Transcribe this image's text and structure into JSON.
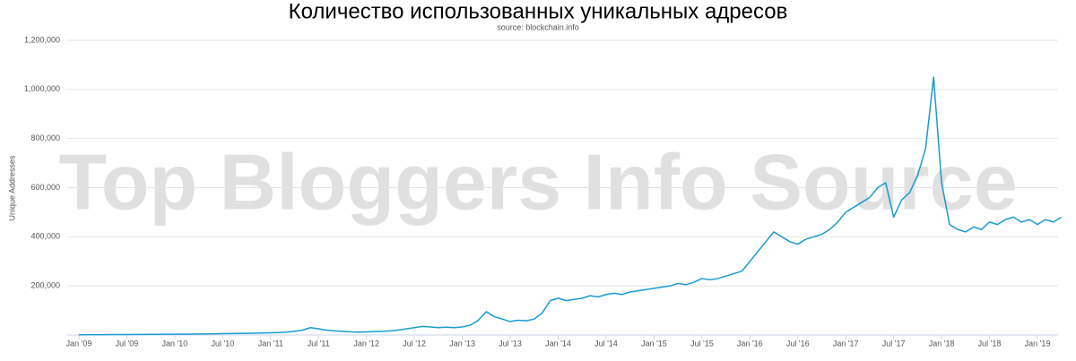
{
  "chart_data": {
    "type": "line",
    "title": "Количество использованных уникальных адресов",
    "subtitle": "source: blockchain.info",
    "y_label": "Unique Addresses",
    "watermark": "Top Bloggers Info Source",
    "x": [
      "2009-01",
      "2009-02",
      "2009-03",
      "2009-04",
      "2009-05",
      "2009-06",
      "2009-07",
      "2009-08",
      "2009-09",
      "2009-10",
      "2009-11",
      "2009-12",
      "2010-01",
      "2010-02",
      "2010-03",
      "2010-04",
      "2010-05",
      "2010-06",
      "2010-07",
      "2010-08",
      "2010-09",
      "2010-10",
      "2010-11",
      "2010-12",
      "2011-01",
      "2011-02",
      "2011-03",
      "2011-04",
      "2011-05",
      "2011-06",
      "2011-07",
      "2011-08",
      "2011-09",
      "2011-10",
      "2011-11",
      "2011-12",
      "2012-01",
      "2012-02",
      "2012-03",
      "2012-04",
      "2012-05",
      "2012-06",
      "2012-07",
      "2012-08",
      "2012-09",
      "2012-10",
      "2012-11",
      "2012-12",
      "2013-01",
      "2013-02",
      "2013-03",
      "2013-04",
      "2013-05",
      "2013-06",
      "2013-07",
      "2013-08",
      "2013-09",
      "2013-10",
      "2013-11",
      "2013-12",
      "2014-01",
      "2014-02",
      "2014-03",
      "2014-04",
      "2014-05",
      "2014-06",
      "2014-07",
      "2014-08",
      "2014-09",
      "2014-10",
      "2014-11",
      "2014-12",
      "2015-01",
      "2015-02",
      "2015-03",
      "2015-04",
      "2015-05",
      "2015-06",
      "2015-07",
      "2015-08",
      "2015-09",
      "2015-10",
      "2015-11",
      "2015-12",
      "2016-01",
      "2016-02",
      "2016-03",
      "2016-04",
      "2016-05",
      "2016-06",
      "2016-07",
      "2016-08",
      "2016-09",
      "2016-10",
      "2016-11",
      "2016-12",
      "2017-01",
      "2017-02",
      "2017-03",
      "2017-04",
      "2017-05",
      "2017-06",
      "2017-07",
      "2017-08",
      "2017-09",
      "2017-10",
      "2017-11",
      "2017-12",
      "2018-01",
      "2018-02",
      "2018-03",
      "2018-04",
      "2018-05",
      "2018-06",
      "2018-07",
      "2018-08",
      "2018-09",
      "2018-10",
      "2018-11",
      "2018-12",
      "2019-01",
      "2019-02",
      "2019-03",
      "2019-04"
    ],
    "series": [
      {
        "color": "#1a9bd0",
        "values": [
          1000,
          1200,
          1300,
          1500,
          1600,
          1800,
          2000,
          2200,
          2400,
          2600,
          2800,
          3000,
          3200,
          3500,
          3800,
          4000,
          4500,
          5000,
          5500,
          6000,
          6500,
          7000,
          7500,
          8000,
          9000,
          10000,
          12000,
          15000,
          20000,
          30000,
          25000,
          20000,
          17000,
          15000,
          13000,
          12000,
          13000,
          14000,
          15000,
          17000,
          20000,
          25000,
          30000,
          35000,
          33000,
          30000,
          32000,
          30000,
          33000,
          40000,
          60000,
          95000,
          75000,
          65000,
          55000,
          60000,
          58000,
          65000,
          90000,
          140000,
          150000,
          140000,
          145000,
          150000,
          160000,
          155000,
          165000,
          170000,
          165000,
          175000,
          180000,
          185000,
          190000,
          195000,
          200000,
          210000,
          205000,
          215000,
          230000,
          225000,
          230000,
          240000,
          250000,
          260000,
          300000,
          340000,
          380000,
          420000,
          400000,
          380000,
          370000,
          390000,
          400000,
          410000,
          430000,
          460000,
          500000,
          520000,
          540000,
          560000,
          600000,
          620000,
          480000,
          550000,
          580000,
          650000,
          760000,
          1050000,
          620000,
          450000,
          430000,
          420000,
          440000,
          430000,
          460000,
          450000,
          470000,
          480000,
          460000,
          470000,
          450000,
          470000,
          460000,
          480000
        ]
      }
    ],
    "xticks": [
      {
        "value": "2009-01",
        "label": "Jan '09"
      },
      {
        "value": "2009-07",
        "label": "Jul '09"
      },
      {
        "value": "2010-01",
        "label": "Jan '10"
      },
      {
        "value": "2010-07",
        "label": "Jul '10"
      },
      {
        "value": "2011-01",
        "label": "Jan '11"
      },
      {
        "value": "2011-07",
        "label": "Jul '11"
      },
      {
        "value": "2012-01",
        "label": "Jan '12"
      },
      {
        "value": "2012-07",
        "label": "Jul '12"
      },
      {
        "value": "2013-01",
        "label": "Jan '13"
      },
      {
        "value": "2013-07",
        "label": "Jul '13"
      },
      {
        "value": "2014-01",
        "label": "Jan '14"
      },
      {
        "value": "2014-07",
        "label": "Jul '14"
      },
      {
        "value": "2015-01",
        "label": "Jan '15"
      },
      {
        "value": "2015-07",
        "label": "Jul '15"
      },
      {
        "value": "2016-01",
        "label": "Jan '16"
      },
      {
        "value": "2016-07",
        "label": "Jul '16"
      },
      {
        "value": "2017-01",
        "label": "Jan '17"
      },
      {
        "value": "2017-07",
        "label": "Jul '17"
      },
      {
        "value": "2018-01",
        "label": "Jan '18"
      },
      {
        "value": "2018-07",
        "label": "Jul '18"
      },
      {
        "value": "2019-01",
        "label": "Jan '19"
      }
    ],
    "ylim": [
      0,
      1200000
    ],
    "yticks": [
      {
        "value": 200000,
        "label": "200,000"
      },
      {
        "value": 400000,
        "label": "400,000"
      },
      {
        "value": 600000,
        "label": "600,000"
      },
      {
        "value": 800000,
        "label": "800,000"
      },
      {
        "value": 1000000,
        "label": "1,000,000"
      },
      {
        "value": 1200000,
        "label": "1,200,000"
      }
    ],
    "grid": true
  }
}
